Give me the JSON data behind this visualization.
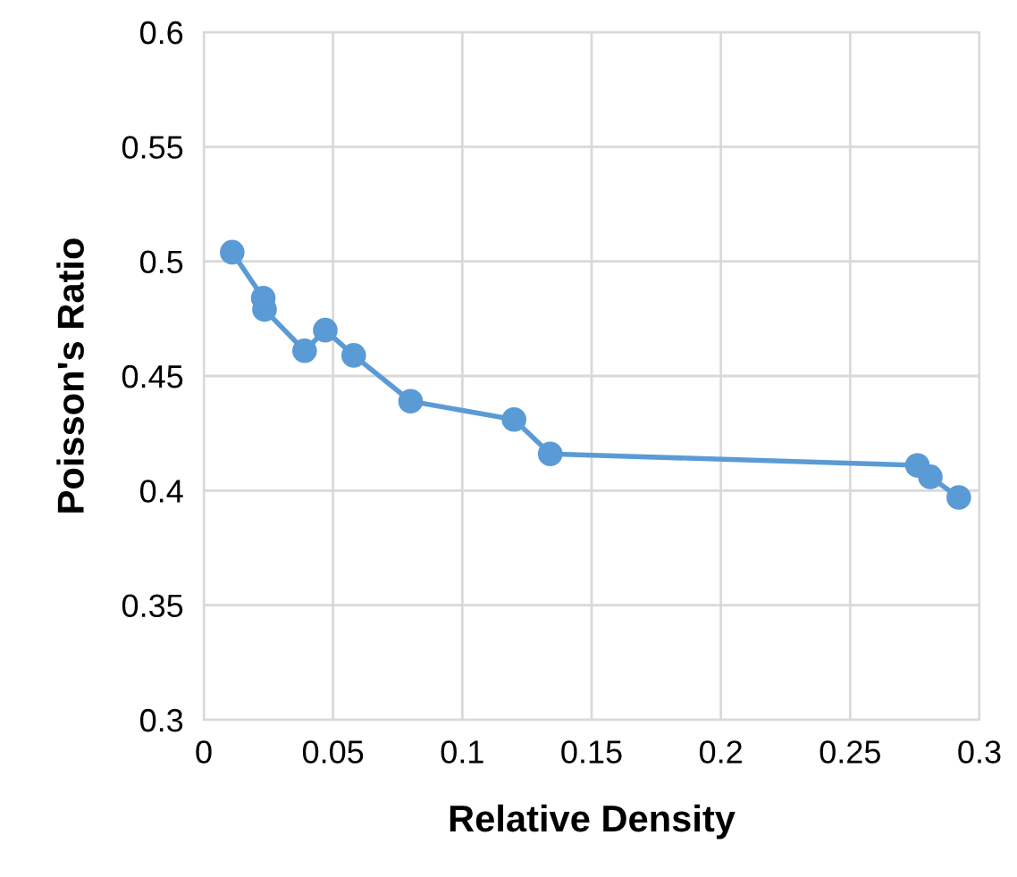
{
  "chart_data": {
    "type": "line",
    "xlabel": "Relative Density",
    "ylabel": "Poisson's Ratio",
    "x": [
      0.011,
      0.023,
      0.0235,
      0.039,
      0.047,
      0.058,
      0.08,
      0.12,
      0.134,
      0.276,
      0.281,
      0.292
    ],
    "series": [
      {
        "color": "#5b9bd5",
        "values": [
          0.504,
          0.484,
          0.479,
          0.461,
          0.47,
          0.459,
          0.439,
          0.431,
          0.416,
          0.411,
          0.406,
          0.397
        ]
      }
    ],
    "xlim": [
      0,
      0.3
    ],
    "xticks": [
      0,
      0.05,
      0.1,
      0.15,
      0.2,
      0.25,
      0.3
    ],
    "ylim": [
      0.3,
      0.6
    ],
    "yticks": [
      0.3,
      0.35,
      0.4,
      0.45,
      0.5,
      0.55,
      0.6
    ],
    "grid": true,
    "marker": "circle",
    "line_style": "solid",
    "legend": false
  }
}
